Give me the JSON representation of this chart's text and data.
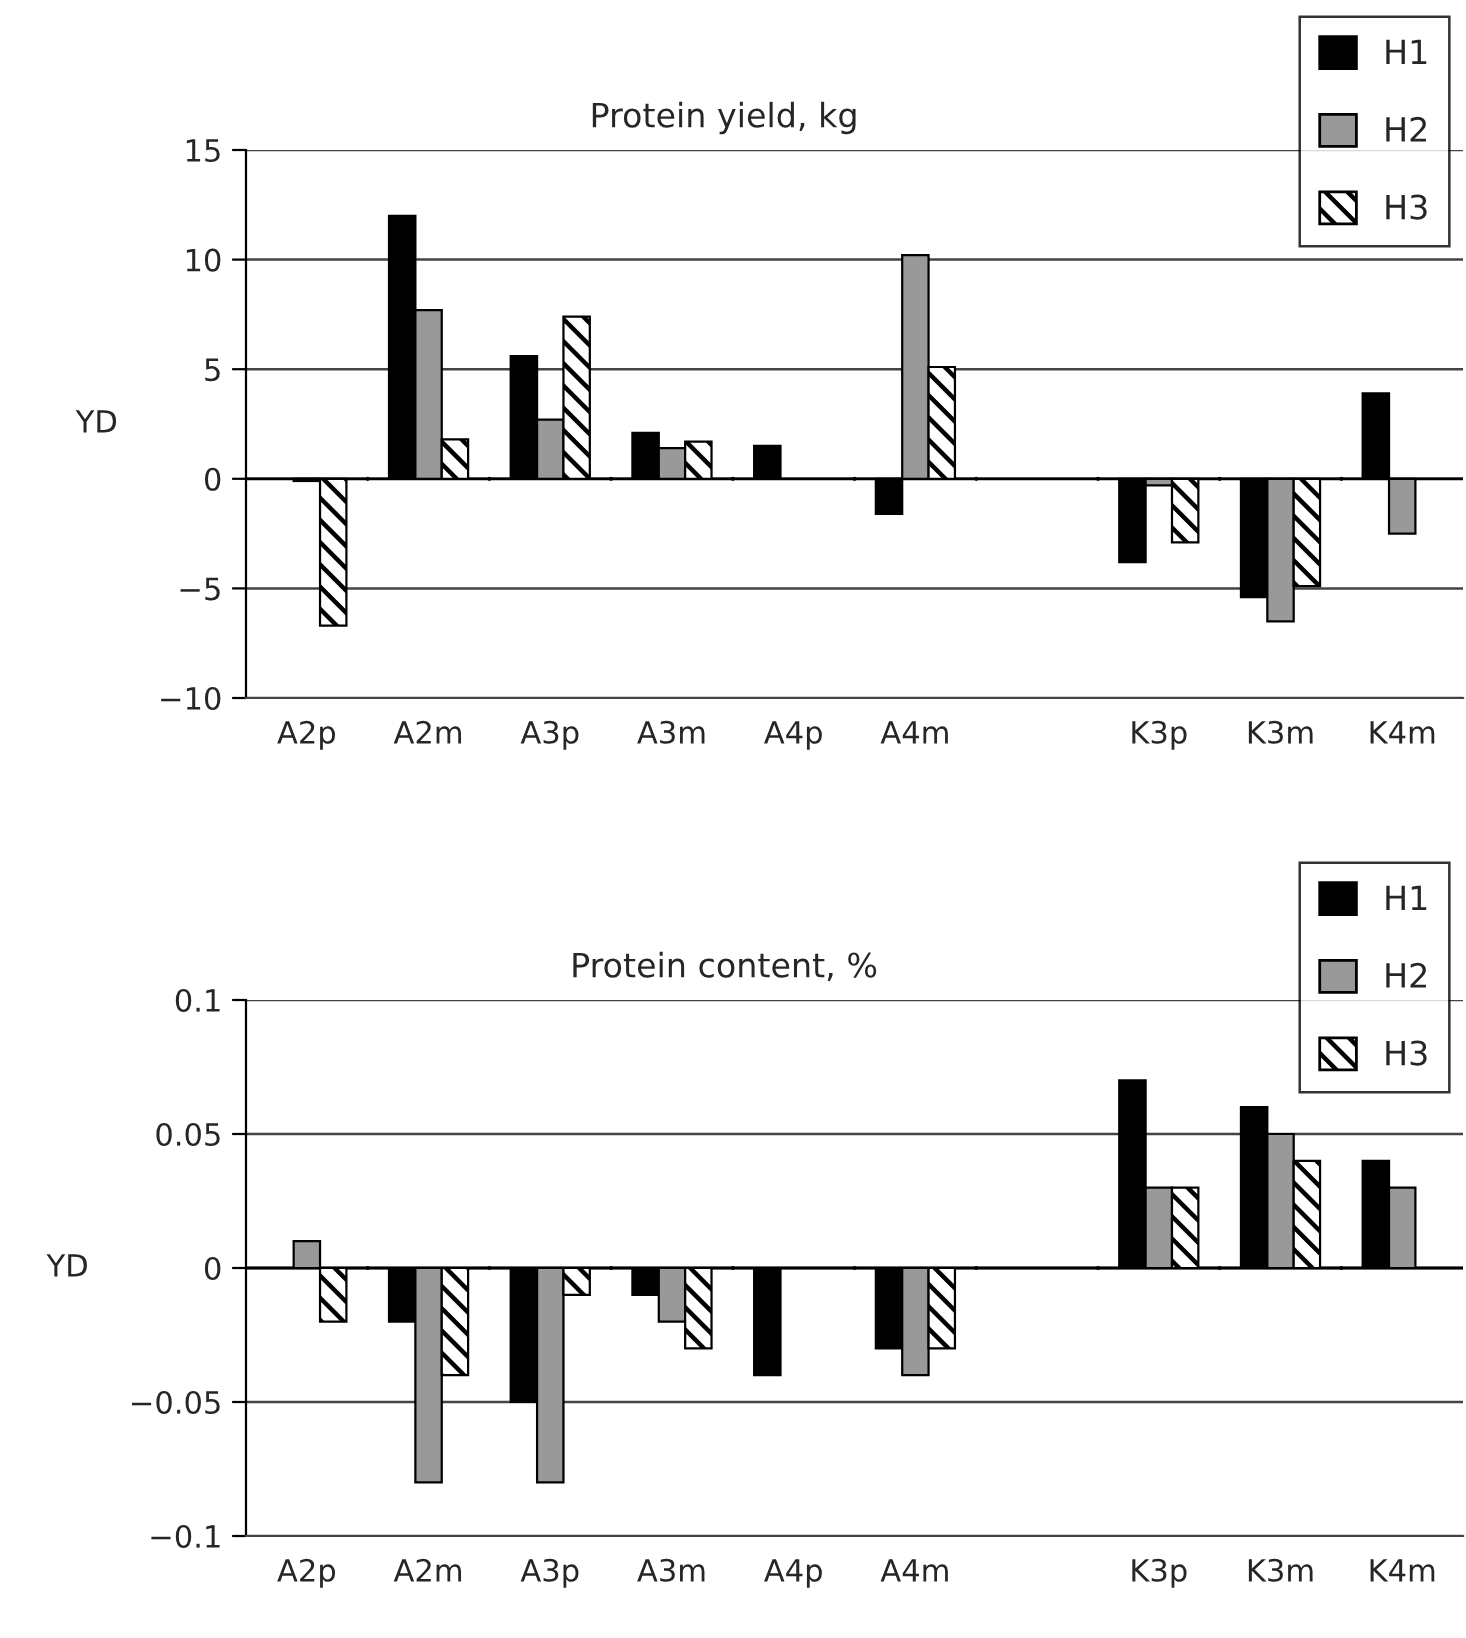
{
  "chart_data": [
    {
      "type": "bar",
      "title": "Protein yield, kg",
      "ylabel": "YD",
      "categories": [
        "A2p",
        "A2m",
        "A3p",
        "A3m",
        "A4p",
        "A4m",
        null,
        "K3p",
        "K3m",
        "K4m"
      ],
      "series": [
        {
          "name": "H1",
          "color": "#000000",
          "values": [
            null,
            12.0,
            5.6,
            2.1,
            1.5,
            -1.6,
            null,
            -3.8,
            -5.4,
            3.9
          ]
        },
        {
          "name": "H2",
          "color": "#999999",
          "values": [
            -0.1,
            7.7,
            2.7,
            1.4,
            null,
            10.2,
            null,
            -0.3,
            -6.5,
            -2.5
          ]
        },
        {
          "name": "H3",
          "color": "#ffffff",
          "values": [
            -6.7,
            1.8,
            7.4,
            1.7,
            null,
            5.1,
            null,
            -2.9,
            -4.9,
            null
          ]
        }
      ],
      "ylim": [
        -10,
        15
      ],
      "yticks": [
        {
          "value": -10,
          "label": "−10"
        },
        {
          "value": -5,
          "label": "−5"
        },
        0,
        5,
        10,
        15
      ],
      "grid": "y",
      "legend": "top right"
    },
    {
      "type": "bar",
      "title": "Protein content, %",
      "ylabel": "YD",
      "categories": [
        "A2p",
        "A2m",
        "A3p",
        "A3m",
        "A4p",
        "A4m",
        null,
        "K3p",
        "K3m",
        "K4m"
      ],
      "series": [
        {
          "name": "H1",
          "color": "#000000",
          "values": [
            null,
            -0.02,
            -0.05,
            -0.01,
            -0.04,
            -0.03,
            null,
            0.07,
            0.06,
            0.04
          ]
        },
        {
          "name": "H2",
          "color": "#999999",
          "values": [
            0.01,
            -0.08,
            -0.08,
            -0.02,
            null,
            -0.04,
            null,
            0.03,
            0.05,
            0.03
          ]
        },
        {
          "name": "H3",
          "color": "#ffffff",
          "values": [
            -0.02,
            -0.04,
            -0.01,
            -0.03,
            null,
            -0.03,
            null,
            0.03,
            0.04,
            null
          ]
        }
      ],
      "ylim": [
        -0.1,
        0.1
      ],
      "yticks": [
        {
          "value": -0.1,
          "label": "−0.1"
        },
        {
          "value": -0.05,
          "label": "−0.05"
        },
        0,
        0.05,
        0.1
      ],
      "grid": "y",
      "legend": "top right"
    }
  ]
}
